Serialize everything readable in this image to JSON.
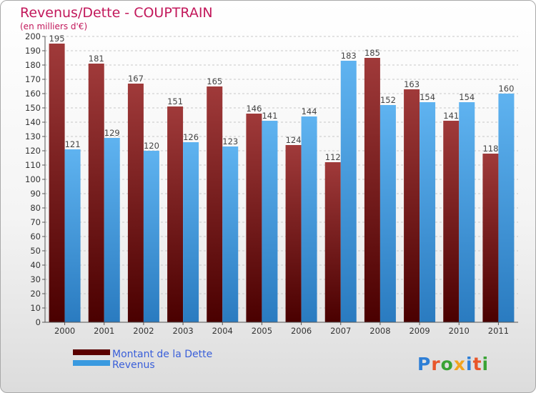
{
  "chart_data": {
    "type": "bar",
    "title": "Revenus/Dette - COUPTRAIN",
    "subtitle": "(en milliers d'€)",
    "categories": [
      "2000",
      "2001",
      "2002",
      "2003",
      "2004",
      "2005",
      "2006",
      "2007",
      "2008",
      "2009",
      "2010",
      "2011"
    ],
    "series": [
      {
        "name": "Montant de la Dette",
        "color": "#8b1a1a",
        "values": [
          195,
          181,
          167,
          151,
          165,
          146,
          124,
          112,
          185,
          163,
          141,
          118
        ]
      },
      {
        "name": "Revenus",
        "color": "#3a9ae0",
        "values": [
          121,
          129,
          120,
          126,
          123,
          141,
          144,
          183,
          152,
          154,
          154,
          160
        ]
      }
    ],
    "ylim": [
      0,
      200
    ],
    "ytick_step": 10,
    "grid": true,
    "legend_position": "bottom-left"
  },
  "logo": {
    "text": "Proxiti"
  }
}
